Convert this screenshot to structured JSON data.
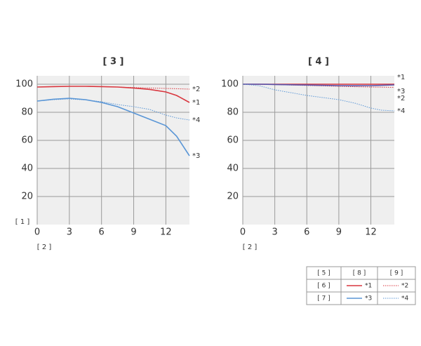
{
  "chart_data": [
    {
      "type": "line",
      "title": "[ 3 ]",
      "y_label": "[ 1 ]",
      "x_label": "[ 2 ]",
      "x": [
        0,
        1.5,
        3,
        4.5,
        6,
        7.5,
        9,
        10.5,
        12,
        13,
        14.2
      ],
      "xlim": [
        0,
        14.2
      ],
      "ylim": [
        0,
        106
      ],
      "xticks": [
        0,
        3,
        6,
        9,
        12
      ],
      "yticks": [
        20,
        40,
        60,
        80,
        100
      ],
      "grid": true,
      "series": [
        {
          "name": "*1",
          "color": "#d9363e",
          "dash": "solid",
          "values": [
            98,
            98.3,
            98.5,
            98.5,
            98.3,
            98,
            97.3,
            96.3,
            94.5,
            92,
            87
          ]
        },
        {
          "name": "*2",
          "color": "#d9363e",
          "dash": "dotted",
          "values": [
            98,
            98.3,
            98.5,
            98.5,
            98.3,
            98,
            97.6,
            97.3,
            97,
            96.8,
            96.5
          ]
        },
        {
          "name": "*3",
          "color": "#5a96d6",
          "dash": "solid",
          "values": [
            88,
            89.3,
            90,
            89,
            87,
            84,
            79.5,
            75,
            70.5,
            63,
            49
          ]
        },
        {
          "name": "*4",
          "color": "#5a96d6",
          "dash": "dotted",
          "values": [
            88,
            89,
            89.5,
            88.8,
            87.5,
            85.5,
            84,
            82,
            78,
            76,
            74.5
          ]
        }
      ]
    },
    {
      "type": "line",
      "title": "[ 4 ]",
      "x_label": "[ 2 ]",
      "x": [
        0,
        1.5,
        3,
        4.5,
        6,
        7.5,
        9,
        10.5,
        12,
        13,
        14.2
      ],
      "xlim": [
        0,
        14.2
      ],
      "ylim": [
        0,
        106
      ],
      "xticks": [
        0,
        3,
        6,
        9,
        12
      ],
      "yticks": [
        20,
        40,
        60,
        80,
        100
      ],
      "grid": true,
      "series": [
        {
          "name": "*1",
          "color": "#d9363e",
          "dash": "solid",
          "values": [
            100,
            100,
            100,
            100,
            100,
            100,
            100,
            100,
            100,
            100,
            100
          ]
        },
        {
          "name": "*2",
          "color": "#d9363e",
          "dash": "dotted",
          "values": [
            100,
            99.9,
            99.7,
            99.4,
            99.1,
            98.8,
            98.5,
            98.2,
            98,
            97.9,
            97.8
          ]
        },
        {
          "name": "*3",
          "color": "#5a5ab0",
          "dash": "solid",
          "values": [
            100,
            100,
            99.8,
            99.6,
            99.4,
            99.2,
            99,
            98.9,
            99,
            99.2,
            99.5
          ]
        },
        {
          "name": "*4",
          "color": "#5a96d6",
          "dash": "dotted",
          "values": [
            100,
            99,
            96,
            94,
            92,
            90.5,
            89,
            86.5,
            83,
            81.5,
            81
          ]
        }
      ]
    }
  ],
  "legend": {
    "headers": [
      "[ 5 ]",
      "[ 8 ]",
      "[ 9 ]"
    ],
    "rows": [
      "[ 6 ]",
      "[ 7 ]"
    ]
  }
}
